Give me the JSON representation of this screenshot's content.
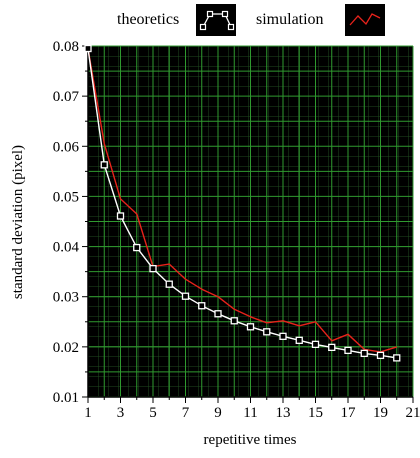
{
  "chart_data": {
    "type": "line",
    "title": "",
    "xlabel": "repetitive times",
    "ylabel": "standard deviation (pixel)",
    "xlim": [
      1,
      21
    ],
    "ylim": [
      0.01,
      0.08
    ],
    "xticks": [
      1,
      3,
      5,
      7,
      9,
      11,
      13,
      15,
      17,
      19,
      21
    ],
    "yticks": [
      0.01,
      0.02,
      0.03,
      0.04,
      0.05,
      0.06,
      0.07,
      0.08
    ],
    "ytick_labels": [
      "0.01",
      "0.02",
      "0.03",
      "0.04",
      "0.05",
      "0.06",
      "0.07",
      "0.08"
    ],
    "grid": true,
    "legend_position": "top",
    "series": [
      {
        "name": "theoretics",
        "color": "#ffffff",
        "marker": "square",
        "x": [
          1,
          2,
          3,
          4,
          5,
          6,
          7,
          8,
          9,
          10,
          11,
          12,
          13,
          14,
          15,
          16,
          17,
          18,
          19,
          20
        ],
        "values": [
          0.0795,
          0.0563,
          0.0461,
          0.0398,
          0.0356,
          0.0325,
          0.0301,
          0.0282,
          0.0266,
          0.0252,
          0.024,
          0.023,
          0.0221,
          0.0213,
          0.0205,
          0.0199,
          0.0193,
          0.0187,
          0.0183,
          0.0178
        ]
      },
      {
        "name": "simulation",
        "color": "#e8221b",
        "marker": "none",
        "x": [
          1,
          2,
          3,
          4,
          5,
          6,
          7,
          8,
          9,
          10,
          11,
          12,
          13,
          14,
          15,
          16,
          17,
          18,
          19,
          20
        ],
        "values": [
          0.0795,
          0.0605,
          0.0495,
          0.0465,
          0.036,
          0.0365,
          0.0335,
          0.0315,
          0.03,
          0.0275,
          0.026,
          0.0248,
          0.0252,
          0.0242,
          0.025,
          0.0212,
          0.0225,
          0.0195,
          0.019,
          0.02
        ]
      }
    ]
  }
}
